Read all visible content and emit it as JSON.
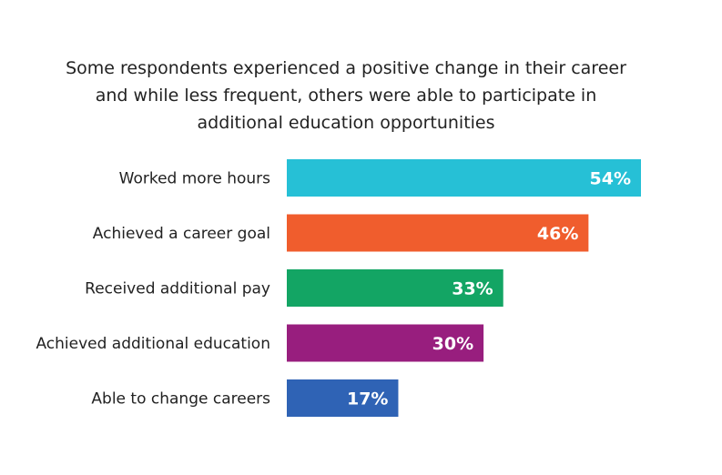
{
  "chart_data": {
    "type": "bar",
    "orientation": "horizontal",
    "title": "Some respondents experienced a positive change in their career and while less frequent, others were able to participate in additional education opportunities",
    "categories": [
      "Worked more hours",
      "Achieved a career goal",
      "Received additional pay",
      "Achieved additional education",
      "Able to change careers"
    ],
    "values": [
      54,
      46,
      33,
      30,
      17
    ],
    "data_labels": [
      "54%",
      "46%",
      "33%",
      "30%",
      "17%"
    ],
    "colors": [
      "#26c0d6",
      "#f05d2d",
      "#13a564",
      "#981e7e",
      "#2f63b5"
    ],
    "xlim": [
      0,
      100
    ],
    "grid": false,
    "legend": "none"
  }
}
